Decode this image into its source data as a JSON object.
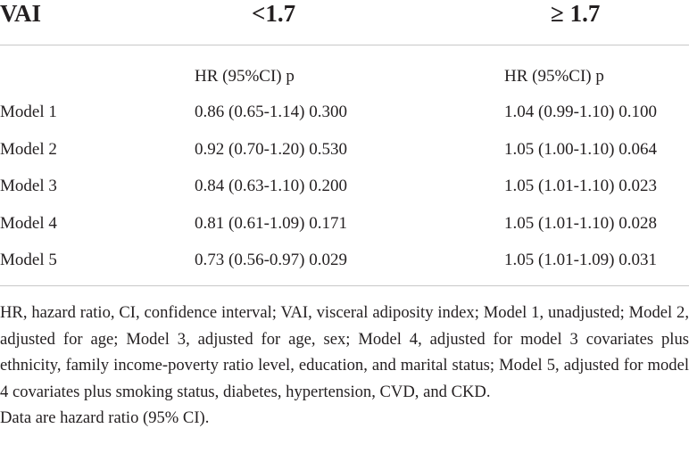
{
  "header": {
    "title": "VAI",
    "col1": "<1.7",
    "col2": "≥ 1.7"
  },
  "subheader": [
    "HR (95%CI) p",
    "HR (95%CI) p"
  ],
  "rows": [
    [
      "Model 1",
      "0.86 (0.65-1.14) 0.300",
      "1.04 (0.99-1.10) 0.100"
    ],
    [
      "Model 2",
      "0.92 (0.70-1.20) 0.530",
      "1.05 (1.00-1.10) 0.064"
    ],
    [
      "Model 3",
      "0.84 (0.63-1.10) 0.200",
      "1.05 (1.01-1.10) 0.023"
    ],
    [
      "Model 4",
      "0.81 (0.61-1.09) 0.171",
      "1.05 (1.01-1.10) 0.028"
    ],
    [
      "Model 5",
      "0.73 (0.56-0.97) 0.029",
      "1.05 (1.01-1.09) 0.031"
    ]
  ],
  "footnotes": [
    "HR, hazard ratio, CI, confidence interval; VAI, visceral adiposity index; Model 1, unadjusted; Model 2, adjusted for age; Model 3, adjusted for age, sex; Model 4, adjusted for model 3 covariates plus ethnicity, family income-poverty ratio level, education, and marital status; Model 5, adjusted for model 4 covariates plus smoking status, diabetes, hypertension, CVD, and CKD.",
    "Data are hazard ratio (95% CI)."
  ]
}
